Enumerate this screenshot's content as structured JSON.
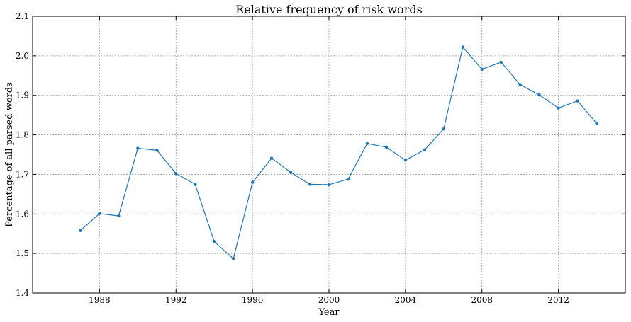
{
  "chart_data": {
    "type": "line",
    "title": "Relative frequency of risk words",
    "xlabel": "Year",
    "ylabel": "Percentage of all parsed words",
    "xlim": [
      1984.5,
      2015.5
    ],
    "ylim": [
      1.4,
      2.1
    ],
    "xticks": [
      1988,
      1992,
      1996,
      2000,
      2004,
      2008,
      2012
    ],
    "xtick_labels": [
      "1988",
      "1992",
      "1996",
      "2000",
      "2004",
      "2008",
      "2012"
    ],
    "yticks": [
      1.4,
      1.5,
      1.6,
      1.7,
      1.8,
      1.9,
      2.0,
      2.1
    ],
    "ytick_labels": [
      "1.4",
      "1.5",
      "1.6",
      "1.7",
      "1.8",
      "1.9",
      "2.0",
      "2.1"
    ],
    "grid": true,
    "line_color": "#1f77b4",
    "series": [
      {
        "x": [
          1987,
          1988,
          1989,
          1990,
          1991,
          1992,
          1993,
          1994,
          1995,
          1996,
          1997,
          1998,
          1999,
          2000,
          2001,
          2002,
          2003,
          2004,
          2005,
          2006,
          2007,
          2008,
          2009,
          2010,
          2011,
          2012,
          2013,
          2014
        ],
        "values": [
          1.558,
          1.601,
          1.595,
          1.766,
          1.761,
          1.702,
          1.675,
          1.53,
          1.487,
          1.68,
          1.741,
          1.705,
          1.675,
          1.674,
          1.688,
          1.778,
          1.769,
          1.736,
          1.762,
          1.815,
          2.022,
          1.966,
          1.984,
          1.927,
          1.901,
          1.868,
          1.886,
          1.829
        ]
      }
    ]
  }
}
